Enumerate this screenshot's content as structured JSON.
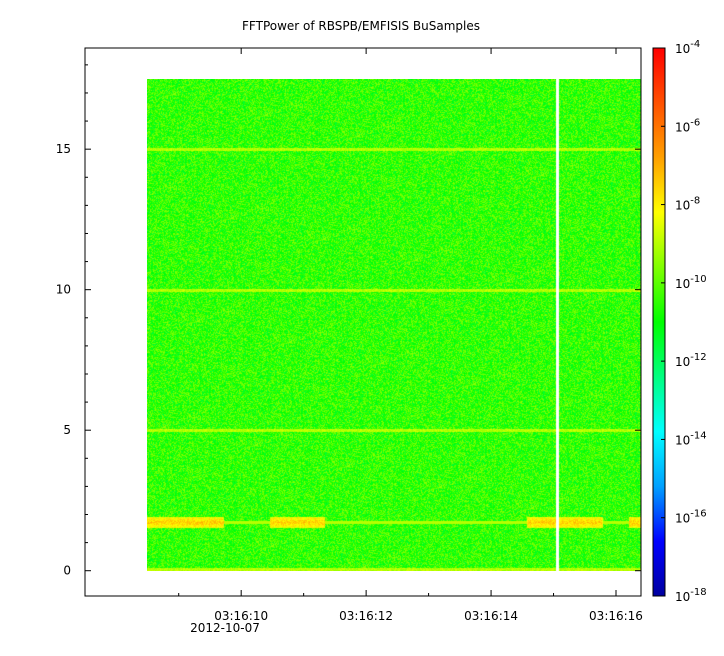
{
  "chart_data": {
    "type": "heatmap",
    "title": "FFTPower of RBSPB/EMFISIS  BuSamples",
    "xlabel": "",
    "ylabel": "",
    "x_ticks": [
      "03:16:10",
      "03:16:12",
      "03:16:14",
      "03:16:16"
    ],
    "x_date_label": "2012-10-07",
    "x_range_seconds": [
      7.5,
      16.4
    ],
    "x_data_range_seconds": [
      8.5,
      16.4
    ],
    "x_tick_seconds": [
      10,
      12,
      14,
      16
    ],
    "y_ticks": [
      "0",
      "5",
      "10",
      "15"
    ],
    "y_tick_values": [
      0,
      5,
      10,
      15
    ],
    "ylim": [
      -0.9,
      18.6
    ],
    "y_data_max": 17.5,
    "data_gap_seconds": 15.05,
    "colorbar": {
      "scale": "log",
      "range": [
        1e-18,
        0.0001
      ],
      "tick_exponents": [
        "-4",
        "-6",
        "-8",
        "-10",
        "-12",
        "-14",
        "-16",
        "-18"
      ],
      "tick_base": "10",
      "colors": [
        "#0000a0",
        "#0000ff",
        "#00a0ff",
        "#00ffff",
        "#00ff80",
        "#00ff00",
        "#80ff00",
        "#ffff00",
        "#ffa000",
        "#ff5000",
        "#ff0000"
      ]
    },
    "background_level_log10": -10.5,
    "features": [
      {
        "description_value_y": 15.0,
        "level_log10": -9.0
      },
      {
        "description_value_y": 10.0,
        "level_log10": -9.0
      },
      {
        "description_value_y": 5.0,
        "level_log10": -9.0
      },
      {
        "description_value_y": 1.75,
        "level_log10": -7.5
      },
      {
        "description_value_y": 0.05,
        "level_log10": -9.0
      }
    ]
  }
}
